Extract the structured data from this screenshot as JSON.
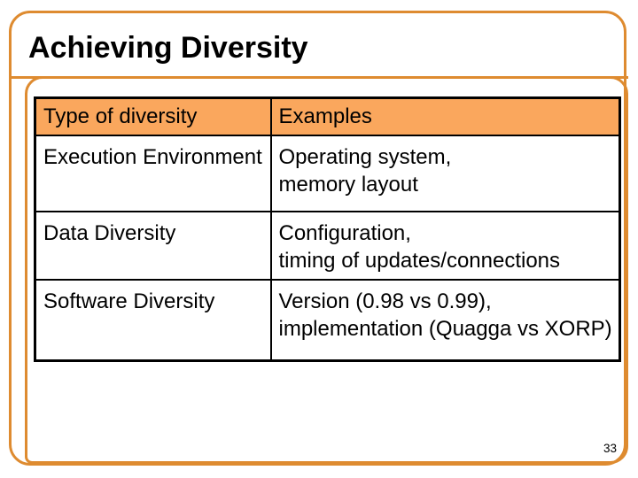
{
  "slide": {
    "title": "Achieving Diversity",
    "page_number": "33"
  },
  "table": {
    "headers": [
      "Type of diversity",
      "Examples"
    ],
    "rows": [
      {
        "type": "Execution Environment",
        "examples": [
          "Operating system,",
          "memory layout"
        ]
      },
      {
        "type": "Data Diversity",
        "examples": [
          "Configuration,",
          "timing of updates/connections"
        ]
      },
      {
        "type": "Software Diversity",
        "examples": [
          "Version (0.98 vs 0.99),",
          "implementation (Quagga vs XORP)"
        ]
      }
    ]
  },
  "colors": {
    "frame_orange": "#DE8B30",
    "header_fill": "#FAA75D",
    "table_border": "#000000",
    "text": "#000000"
  }
}
